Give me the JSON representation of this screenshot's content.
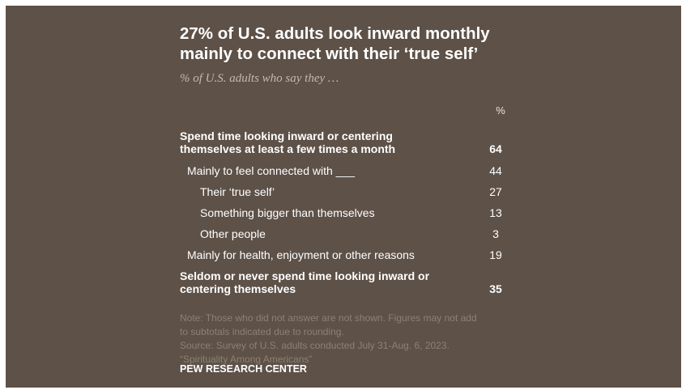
{
  "title_line1": "27% of U.S. adults look inward monthly",
  "title_line2": "mainly to connect with their ‘true self’",
  "subtitle": "% of U.S. adults who say they …",
  "value_header": "%",
  "chart_data": {
    "type": "table",
    "title": "27% of U.S. adults look inward monthly mainly to connect with their ‘true self’",
    "subtitle": "% of U.S. adults who say they …",
    "columns": [
      "",
      "%"
    ],
    "rows": [
      {
        "label_lines": [
          "Spend time looking inward or centering",
          "themselves at least a few times a month"
        ],
        "value": 64,
        "level": 0,
        "bold": true
      },
      {
        "label_lines": [
          "Mainly to feel connected with ___"
        ],
        "value": 44,
        "level": 1,
        "bold": false
      },
      {
        "label_lines": [
          "Their ‘true self’"
        ],
        "value": 27,
        "level": 2,
        "bold": false
      },
      {
        "label_lines": [
          "Something bigger than themselves"
        ],
        "value": 13,
        "level": 2,
        "bold": false
      },
      {
        "label_lines": [
          "Other people"
        ],
        "value": 3,
        "level": 2,
        "bold": false
      },
      {
        "label_lines": [
          "Mainly for health, enjoyment or other reasons"
        ],
        "value": 19,
        "level": 1,
        "bold": false
      },
      {
        "label_lines": [
          "Seldom or never spend time looking inward or",
          "centering themselves"
        ],
        "value": 35,
        "level": 0,
        "bold": true
      }
    ]
  },
  "note_lines": [
    "Note: Those who did not answer are not shown. Figures may not add",
    "to subtotals indicated due to rounding.",
    "Source: Survey of U.S. adults conducted July 31-Aug. 6, 2023.",
    "“Spirituality Among Americans”"
  ],
  "source_label": "PEW RESEARCH CENTER"
}
